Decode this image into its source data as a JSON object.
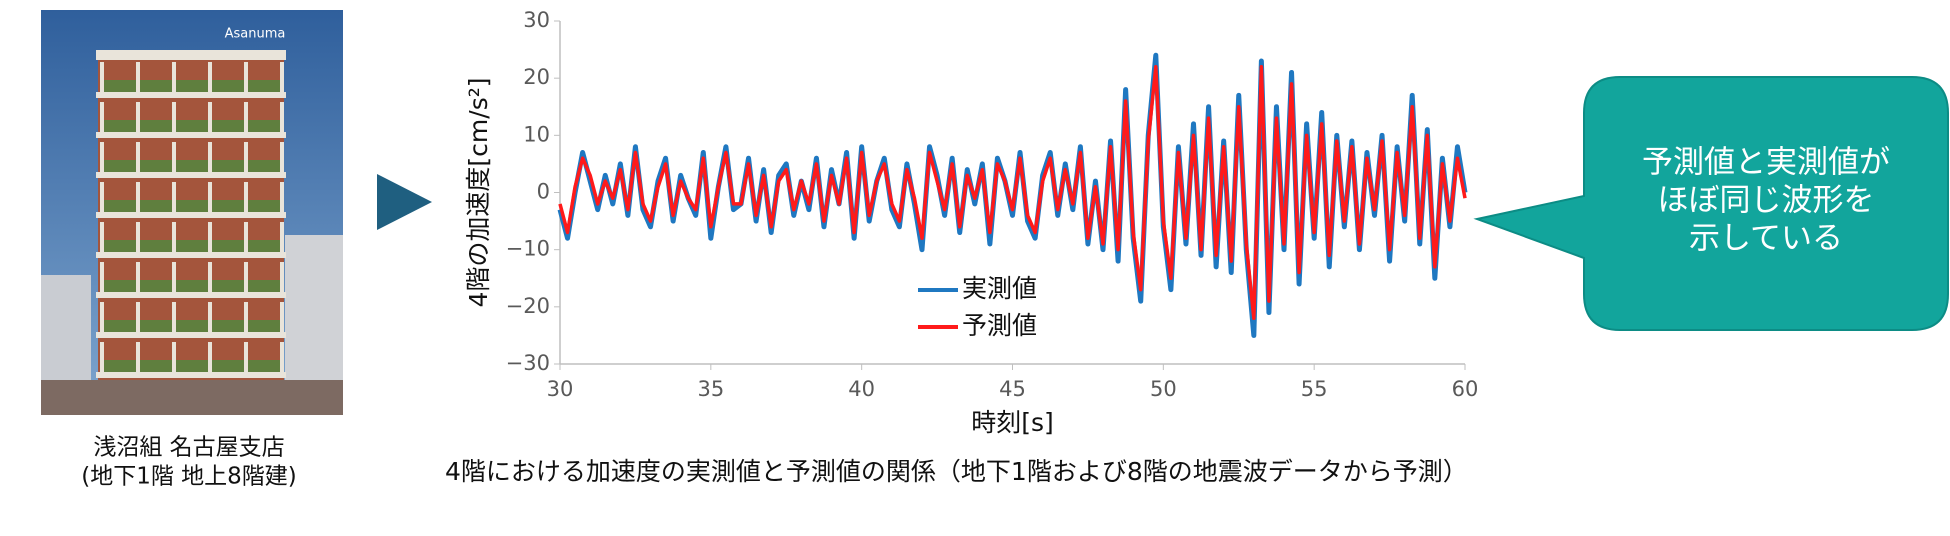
{
  "photo_caption": [
    "浅沼組 名古屋支店",
    "(地下1階 地上8階建)"
  ],
  "photo_sign": "Asanuma",
  "caption": "4階における加速度の実測値と予測値の関係（地下1階および8階の地震波データから予測）",
  "callout": [
    "予測値と実測値が",
    "ほぼ同じ波形を",
    "示している"
  ],
  "chart_data": {
    "type": "line",
    "xlabel": "時刻[s]",
    "ylabel": "4階の加速度[cm/s²]",
    "xlim": [
      30,
      60
    ],
    "xticks": [
      30,
      35,
      40,
      45,
      50,
      55,
      60
    ],
    "ylim": [
      -30,
      30
    ],
    "yticks": [
      30,
      20,
      10,
      0,
      {
        "value": -10,
        "label": "−10"
      },
      {
        "value": -20,
        "label": "−20"
      },
      {
        "value": -30,
        "label": "−30"
      }
    ],
    "x": [
      30,
      30.25,
      30.5,
      30.75,
      31,
      31.25,
      31.5,
      31.75,
      32,
      32.25,
      32.5,
      32.75,
      33,
      33.25,
      33.5,
      33.75,
      34,
      34.25,
      34.5,
      34.75,
      35,
      35.25,
      35.5,
      35.75,
      36,
      36.25,
      36.5,
      36.75,
      37,
      37.25,
      37.5,
      37.75,
      38,
      38.25,
      38.5,
      38.75,
      39,
      39.25,
      39.5,
      39.75,
      40,
      40.25,
      40.5,
      40.75,
      41,
      41.25,
      41.5,
      41.75,
      42,
      42.25,
      42.5,
      42.75,
      43,
      43.25,
      43.5,
      43.75,
      44,
      44.25,
      44.5,
      44.75,
      45,
      45.25,
      45.5,
      45.75,
      46,
      46.25,
      46.5,
      46.75,
      47,
      47.25,
      47.5,
      47.75,
      48,
      48.25,
      48.5,
      48.75,
      49,
      49.25,
      49.5,
      49.75,
      50,
      50.25,
      50.5,
      50.75,
      51,
      51.25,
      51.5,
      51.75,
      52,
      52.25,
      52.5,
      52.75,
      53,
      53.25,
      53.5,
      53.75,
      54,
      54.25,
      54.5,
      54.75,
      55,
      55.25,
      55.5,
      55.75,
      56,
      56.25,
      56.5,
      56.75,
      57,
      57.25,
      57.5,
      57.75,
      58,
      58.25,
      58.5,
      58.75,
      59,
      59.25,
      59.5,
      59.75,
      60
    ],
    "series": [
      {
        "name": "実測値",
        "color": "#1f78c1",
        "values": [
          -3,
          -8,
          0,
          7,
          2,
          -3,
          3,
          -2,
          5,
          -4,
          8,
          -3,
          -6,
          2,
          6,
          -5,
          3,
          -1,
          -4,
          7,
          -8,
          1,
          8,
          -3,
          -2,
          6,
          -5,
          4,
          -7,
          3,
          5,
          -4,
          2,
          -3,
          6,
          -6,
          4,
          -2,
          7,
          -8,
          8,
          -5,
          2,
          6,
          -3,
          -6,
          5,
          -2,
          -10,
          8,
          3,
          -4,
          6,
          -7,
          4,
          -2,
          5,
          -9,
          6,
          2,
          -4,
          7,
          -5,
          -8,
          3,
          7,
          -4,
          5,
          -3,
          8,
          -9,
          2,
          -10,
          9,
          -12,
          18,
          -8,
          -19,
          10,
          24,
          -6,
          -17,
          8,
          -9,
          12,
          -11,
          15,
          -13,
          9,
          -14,
          17,
          -10,
          -25,
          23,
          -21,
          15,
          -10,
          21,
          -16,
          12,
          -8,
          14,
          -13,
          10,
          -6,
          9,
          -10,
          7,
          -4,
          10,
          -12,
          8,
          -5,
          17,
          -9,
          11,
          -15,
          6,
          -6,
          8,
          0
        ]
      },
      {
        "name": "予測値",
        "color": "#ff1a1a",
        "values": [
          -2,
          -7,
          1,
          6,
          3,
          -2,
          2,
          -1,
          4,
          -3,
          7,
          -2,
          -5,
          1,
          5,
          -4,
          2,
          -1,
          -3,
          6,
          -6,
          1,
          7,
          -2,
          -2,
          5,
          -4,
          3,
          -6,
          2,
          4,
          -3,
          2,
          -2,
          5,
          -5,
          3,
          -2,
          6,
          -7,
          7,
          -4,
          2,
          5,
          -2,
          -5,
          4,
          -1,
          -8,
          7,
          2,
          -3,
          5,
          -6,
          3,
          -1,
          4,
          -7,
          5,
          2,
          -3,
          6,
          -4,
          -7,
          2,
          6,
          -3,
          4,
          -2,
          7,
          -8,
          1,
          -9,
          8,
          -10,
          16,
          -7,
          -17,
          9,
          22,
          -5,
          -15,
          7,
          -8,
          10,
          -10,
          13,
          -11,
          8,
          -12,
          15,
          -9,
          -22,
          22,
          -19,
          13,
          -9,
          19,
          -14,
          10,
          -7,
          12,
          -11,
          9,
          -5,
          8,
          -9,
          6,
          -3,
          9,
          -10,
          7,
          -4,
          15,
          -8,
          10,
          -13,
          5,
          -5,
          6,
          -1
        ]
      }
    ]
  }
}
